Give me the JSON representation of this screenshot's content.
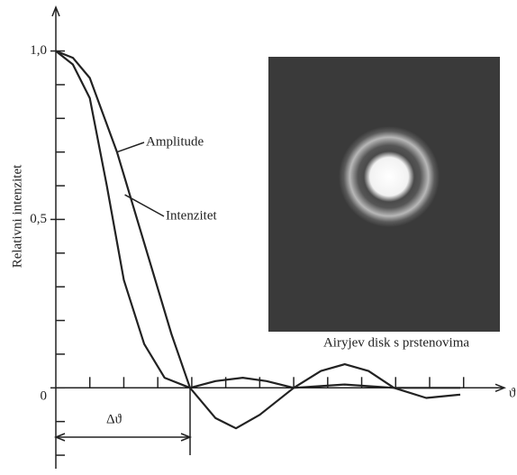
{
  "chart_data": {
    "type": "line",
    "y_label": "Relativni intenzitet",
    "x_label": "ϑ",
    "span_label": "Δϑ",
    "caption": "Airyjev disk  s prstenovima",
    "xlim": [
      0,
      13.2
    ],
    "ylim": [
      -0.24,
      1.13
    ],
    "yticks": [
      0,
      {
        "value": 0.5,
        "label": "0,5"
      },
      {
        "value": 1,
        "label": "1,0"
      }
    ],
    "y_tick_marks": [
      -0.2,
      -0.1,
      0.1,
      0.2,
      0.3,
      0.4,
      0.6,
      0.7,
      0.8,
      0.9
    ],
    "x_tick_marks": [
      1,
      2,
      3,
      4,
      5,
      6,
      7,
      8,
      9,
      10,
      11,
      12
    ],
    "series": [
      {
        "name": "Amplitude",
        "color": "#222222",
        "x": [
          0,
          0.5,
          1,
          1.8,
          2.6,
          3.4,
          3.95,
          4.7,
          5.3,
          6,
          7,
          7.8,
          8.5,
          9.2,
          9.95,
          10.9,
          11.9
        ],
        "values": [
          1,
          0.98,
          0.92,
          0.7,
          0.43,
          0.16,
          0,
          -0.09,
          -0.12,
          -0.08,
          0,
          0.05,
          0.07,
          0.05,
          0,
          -0.03,
          -0.02
        ]
      },
      {
        "name": "Intenzitet",
        "color": "#222222",
        "x": [
          0,
          0.5,
          1,
          1.5,
          2,
          2.6,
          3.2,
          3.95,
          4.7,
          5.5,
          6.2,
          7,
          8.5,
          9.95,
          11.9
        ],
        "values": [
          1,
          0.96,
          0.86,
          0.6,
          0.32,
          0.13,
          0.03,
          0,
          0.02,
          0.03,
          0.02,
          0,
          0.01,
          0,
          0
        ]
      }
    ]
  }
}
